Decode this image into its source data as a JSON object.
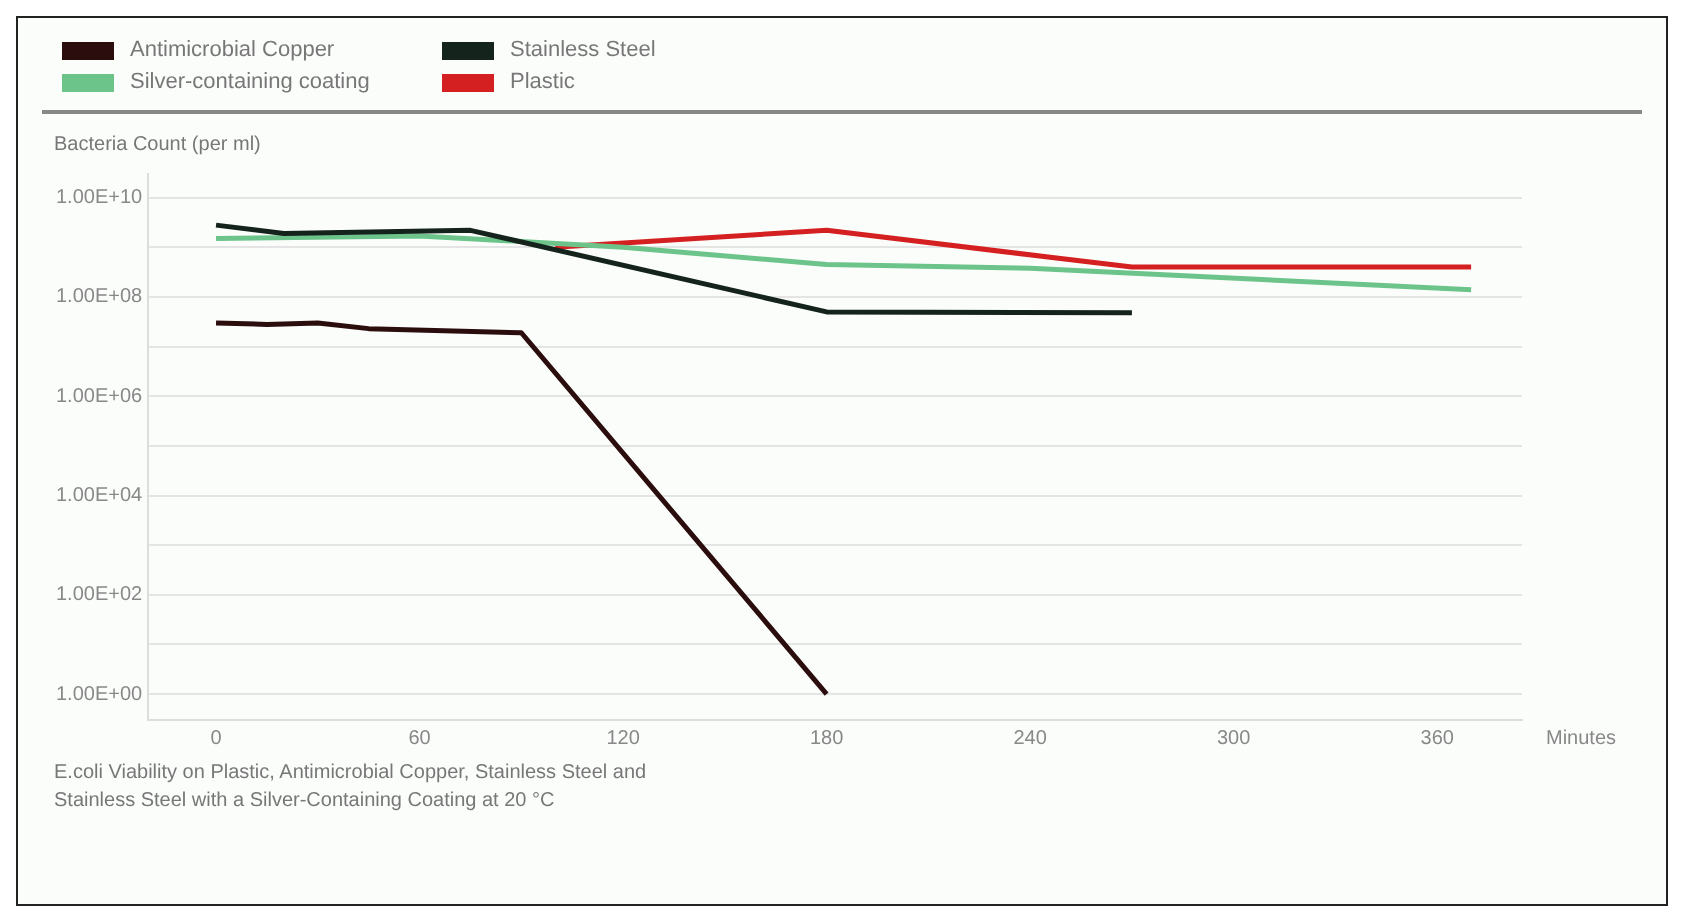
{
  "chart_data": {
    "type": "line",
    "ylabel": "Bacteria Count (per ml)",
    "xlabel": "Minutes",
    "log": "y",
    "grid": "y",
    "legend": "top left",
    "marker": "none",
    "line_style": "solid",
    "ylim": [
      0.3,
      30000000000
    ],
    "yticks": [
      {
        "value": 1,
        "label": "1.00E+00"
      },
      {
        "value": 10,
        "label": null
      },
      {
        "value": 100,
        "label": "1.00E+02"
      },
      {
        "value": 1000,
        "label": null
      },
      {
        "value": 10000,
        "label": "1.00E+04"
      },
      {
        "value": 100000,
        "label": null
      },
      {
        "value": 1000000,
        "label": "1.00E+06"
      },
      {
        "value": 10000000,
        "label": null
      },
      {
        "value": 100000000,
        "label": "1.00E+08"
      },
      {
        "value": 1000000000,
        "label": null
      },
      {
        "value": 10000000000,
        "label": "1.00E+10"
      }
    ],
    "xlim": [
      -20,
      385
    ],
    "xticks": [
      0,
      60,
      120,
      180,
      240,
      300,
      360
    ],
    "series": [
      {
        "name": "Antimicrobial Copper",
        "color": "#2b0d0d",
        "x": [
          0,
          15,
          30,
          45,
          90,
          180
        ],
        "values": [
          30000000,
          28000000,
          30000000,
          23000000,
          19000000,
          1
        ]
      },
      {
        "name": "Stainless Steel",
        "color": "#15231d",
        "x": [
          0,
          20,
          75,
          180,
          270
        ],
        "values": [
          2800000000,
          1900000000,
          2200000000,
          50000000,
          48000000
        ]
      },
      {
        "name": "Silver-containing coating",
        "color": "#6cc48a",
        "x": [
          0,
          60,
          120,
          180,
          240,
          370
        ],
        "values": [
          1500000000,
          1700000000,
          1000000000,
          450000000,
          380000000,
          140000000
        ]
      },
      {
        "name": "Plastic",
        "color": "#d42020",
        "x": [
          100,
          180,
          270,
          370
        ],
        "values": [
          1000000000,
          2200000000,
          400000000,
          400000000
        ]
      }
    ],
    "annotations": [
      "E.coli Viability on Plastic, Antimicrobial Copper, Stainless Steel and Stainless Steel with a Silver-Containing Coating at 20 °C"
    ]
  }
}
